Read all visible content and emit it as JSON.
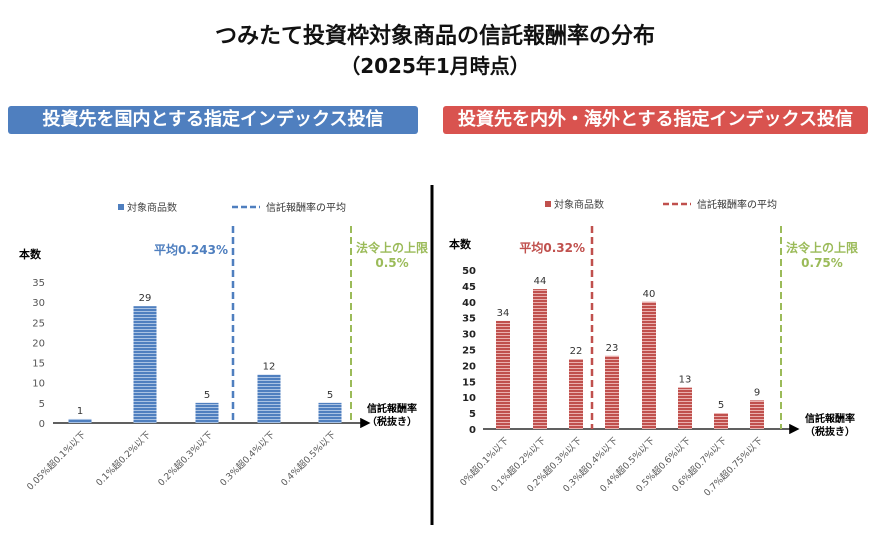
{
  "title": "つみたて投資枠対象商品の信託報酬率の分布",
  "subtitle": "（2025年1月時点）",
  "colors": {
    "domestic": "#4f7fbf",
    "foreign": "#c0504d",
    "limit": "#9bbb59",
    "mean_domestic": "#4f7fbf",
    "mean_foreign": "#c0504d"
  },
  "chart_data": [
    {
      "type": "bar",
      "banner": "投資先を国内とする指定インデックス投信",
      "legend_bar": "対象商品数",
      "legend_line": "信託報酬率の平均",
      "ylabel": "本数",
      "xlabel_line1": "信託報酬率",
      "xlabel_line2": "（税抜き）",
      "ylim": [
        0,
        35
      ],
      "yticks": [
        "0",
        "5",
        "10",
        "15",
        "20",
        "25",
        "30",
        "35"
      ],
      "categories": [
        "0.05%超0.1%以下",
        "0.1%超0.2%以下",
        "0.2%超0.3%以下",
        "0.3%超0.4%以下",
        "0.4%超0.5%以下"
      ],
      "values": [
        1,
        29,
        5,
        12,
        5
      ],
      "mean_label": "平均0.243%",
      "limit_label_line1": "法令上の上限",
      "limit_label_line2": "0.5%",
      "grid": false,
      "legend_position": "top"
    },
    {
      "type": "bar",
      "banner": "投資先を内外・海外とする指定インデックス投信",
      "legend_bar": "対象商品数",
      "legend_line": "信託報酬率の平均",
      "ylabel": "本数",
      "xlabel_line1": "信託報酬率",
      "xlabel_line2": "（税抜き）",
      "ylim": [
        0,
        50
      ],
      "yticks": [
        "0",
        "5",
        "10",
        "15",
        "20",
        "25",
        "30",
        "35",
        "40",
        "45",
        "50"
      ],
      "categories": [
        "0%超0.1%以下",
        "0.1%超0.2%以下",
        "0.2%超0.3%以下",
        "0.3%超0.4%以下",
        "0.4%超0.5%以下",
        "0.5%超0.6%以下",
        "0.6%超0.7%以下",
        "0.7%超0.75%以下"
      ],
      "values": [
        34,
        44,
        22,
        23,
        40,
        13,
        5,
        9
      ],
      "mean_label": "平均0.32%",
      "limit_label_line1": "法令上の上限",
      "limit_label_line2": "0.75%",
      "grid": false,
      "legend_position": "top"
    }
  ]
}
